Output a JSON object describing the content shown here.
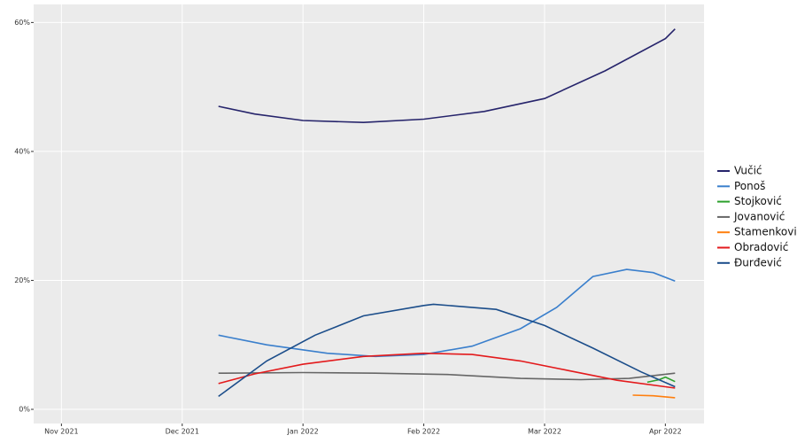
{
  "chart_data": {
    "type": "line",
    "xlim": [
      -0.23,
      5.32
    ],
    "xticks": [
      {
        "value": 0,
        "label": "Nov 2021"
      },
      {
        "value": 1,
        "label": "Dec 2021"
      },
      {
        "value": 2,
        "label": "Jan 2022"
      },
      {
        "value": 3,
        "label": "Feb 2022"
      },
      {
        "value": 4,
        "label": "Mar 2022"
      },
      {
        "value": 5,
        "label": "Apr 2022"
      }
    ],
    "ylim": [
      -2.2,
      62.8
    ],
    "yticks": [
      {
        "value": 0,
        "label": "0%"
      },
      {
        "value": 20,
        "label": "20%"
      },
      {
        "value": 40,
        "label": "40%"
      },
      {
        "value": 60,
        "label": "60%"
      }
    ],
    "grid": true,
    "legend": "right",
    "series": [
      {
        "name": "Vučić",
        "color": "#26246b",
        "x": [
          1.3,
          1.6,
          2.0,
          2.5,
          3.0,
          3.5,
          4.0,
          4.5,
          5.0,
          5.08
        ],
        "values": [
          47,
          45.8,
          44.8,
          44.5,
          45,
          46.2,
          48.2,
          52.5,
          57.5,
          59
        ]
      },
      {
        "name": "Ponoš",
        "color": "#3a7fcc",
        "x": [
          1.3,
          1.7,
          2.2,
          2.6,
          3.0,
          3.4,
          3.8,
          4.1,
          4.4,
          4.68,
          4.9,
          5.08
        ],
        "values": [
          11.5,
          10,
          8.7,
          8.2,
          8.5,
          9.8,
          12.5,
          15.8,
          20.6,
          21.7,
          21.2,
          19.9
        ]
      },
      {
        "name": "Stojković",
        "color": "#2ca02c",
        "x": [
          4.85,
          4.95,
          5.0,
          5.08
        ],
        "values": [
          4.2,
          4.6,
          5,
          4.3
        ]
      },
      {
        "name": "Jovanović",
        "color": "#666666",
        "x": [
          1.3,
          2.0,
          2.6,
          3.2,
          3.8,
          4.3,
          4.7,
          5.08
        ],
        "values": [
          5.6,
          5.7,
          5.6,
          5.4,
          4.8,
          4.6,
          4.8,
          5.6
        ]
      },
      {
        "name": "Stamenković",
        "color": "#ff7f0e",
        "x": [
          4.73,
          4.9,
          5.08
        ],
        "values": [
          2.2,
          2.1,
          1.8
        ]
      },
      {
        "name": "Obradović",
        "color": "#e31a1c",
        "x": [
          1.3,
          1.6,
          2.0,
          2.5,
          3.0,
          3.4,
          3.8,
          4.2,
          4.6,
          5.08
        ],
        "values": [
          4,
          5.5,
          7,
          8.2,
          8.7,
          8.5,
          7.5,
          6,
          4.5,
          3.3
        ]
      },
      {
        "name": "Đurđević",
        "color": "#1b4d8a",
        "x": [
          1.3,
          1.7,
          2.1,
          2.5,
          3.0,
          3.08,
          3.6,
          4.0,
          4.4,
          4.8,
          5.08
        ],
        "values": [
          2,
          7.5,
          11.5,
          14.5,
          16.1,
          16.3,
          15.5,
          13,
          9.5,
          5.8,
          3.5
        ]
      }
    ]
  }
}
